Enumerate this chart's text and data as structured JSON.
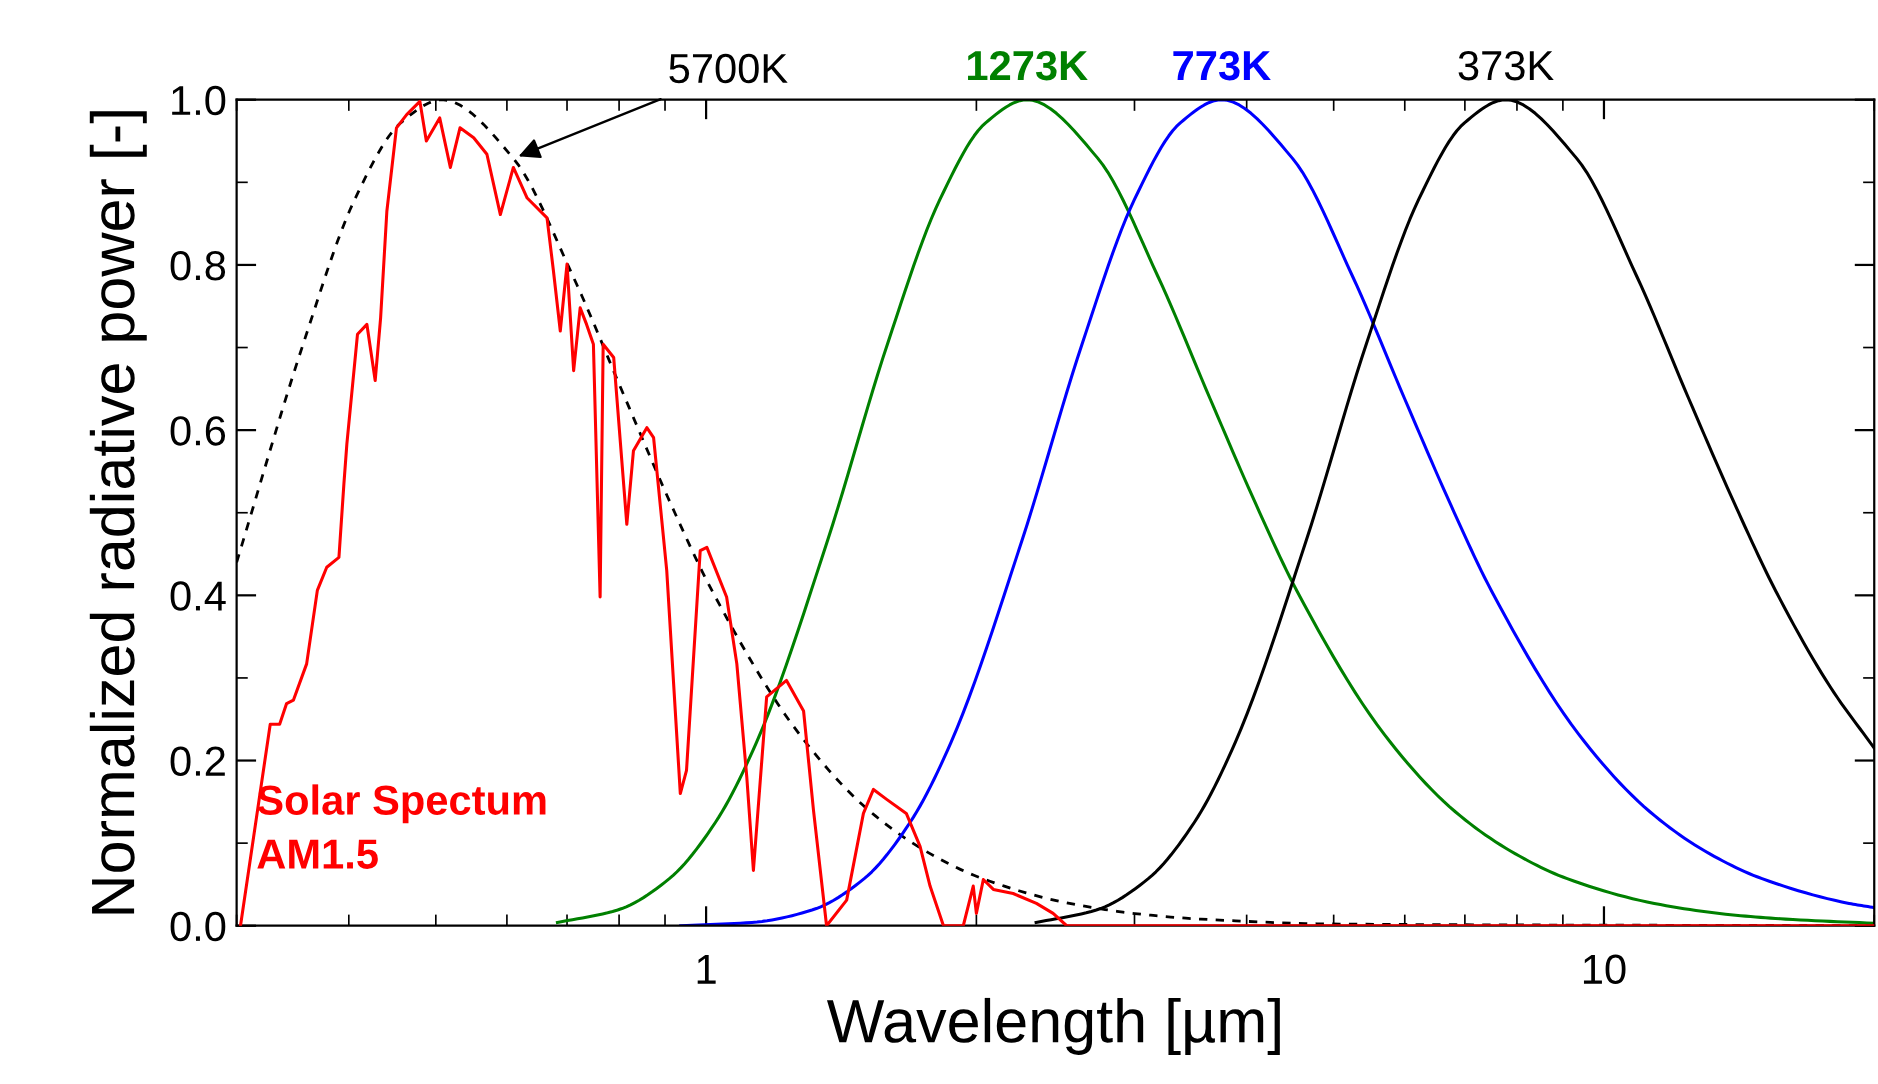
{
  "chart_data": {
    "type": "line",
    "xlabel": "Wavelength [µm]",
    "ylabel": "Normalized radiative power [-]",
    "log": "x",
    "xlim": [
      0.3,
      20
    ],
    "xticks": [
      1,
      10
    ],
    "ylim": [
      0,
      1
    ],
    "yticks": [
      {
        "value": 0,
        "label": "0.0"
      },
      {
        "value": 0.2,
        "label": "0.2"
      },
      {
        "value": 0.4,
        "label": "0.4"
      },
      {
        "value": 0.6,
        "label": "0.6"
      },
      {
        "value": 0.8,
        "label": "0.8"
      },
      {
        "value": 1,
        "label": "1.0"
      }
    ],
    "grid": false,
    "legend": false,
    "marker": "none",
    "series": [
      {
        "name": "Solar Spectum\nAM1.5",
        "color": "#ff0000",
        "line_style": "solid",
        "x": [
          0.303,
          0.327,
          0.335,
          0.341,
          0.347,
          0.359,
          0.369,
          0.378,
          0.39,
          0.395,
          0.398,
          0.409,
          0.419,
          0.428,
          0.434,
          0.441,
          0.452,
          0.464,
          0.48,
          0.488,
          0.505,
          0.519,
          0.532,
          0.551,
          0.57,
          0.59,
          0.61,
          0.632,
          0.665,
          0.676,
          0.688,
          0.7,
          0.712,
          0.724,
          0.736,
          0.749,
          0.762,
          0.768,
          0.789,
          0.816,
          0.83,
          0.859,
          0.874,
          0.904,
          0.936,
          0.951,
          0.985,
          1.002,
          1.054,
          1.082,
          1.11,
          1.129,
          1.168,
          1.229,
          1.284,
          1.317,
          1.362,
          1.434,
          1.497,
          1.536,
          1.589,
          1.671,
          1.731,
          1.776,
          1.838,
          1.934,
          1.984,
          2.0,
          2.036,
          2.089,
          2.198,
          2.333,
          2.435,
          2.521,
          20
        ],
        "values": [
          0,
          0.244,
          0.244,
          0.269,
          0.273,
          0.317,
          0.406,
          0.434,
          0.446,
          0.535,
          0.583,
          0.716,
          0.728,
          0.66,
          0.736,
          0.865,
          0.966,
          0.982,
          0.998,
          0.95,
          0.978,
          0.918,
          0.966,
          0.954,
          0.934,
          0.861,
          0.918,
          0.881,
          0.857,
          0.793,
          0.72,
          0.801,
          0.672,
          0.748,
          0.728,
          0.704,
          0.398,
          0.704,
          0.688,
          0.486,
          0.575,
          0.603,
          0.591,
          0.43,
          0.16,
          0.188,
          0.454,
          0.458,
          0.398,
          0.317,
          0.18,
          0.067,
          0.277,
          0.297,
          0.26,
          0.14,
          0,
          0.031,
          0.136,
          0.165,
          0.153,
          0.136,
          0.096,
          0.048,
          0,
          0,
          0.048,
          0.015,
          0.056,
          0.044,
          0.039,
          0.027,
          0.015,
          0,
          0
        ]
      },
      {
        "name": "5700K",
        "color": "#000000",
        "line_style": "dashed",
        "x": [
          0.3,
          0.356,
          0.406,
          0.457,
          0.508,
          0.61,
          0.711,
          0.813,
          0.914,
          1.016,
          1.27,
          1.524,
          1.778,
          2.032,
          2.54,
          3.048,
          3.556,
          5.08,
          20
        ],
        "values": [
          0.44,
          0.705,
          0.879,
          0.972,
          1.0,
          0.929,
          0.786,
          0.638,
          0.51,
          0.405,
          0.232,
          0.138,
          0.087,
          0.057,
          0.027,
          0.014,
          0.008,
          0.002,
          0
        ]
      },
      {
        "name": "1273K",
        "color": "#008000",
        "line_style": "solid",
        "x": [
          0.683,
          0.797,
          0.91,
          1.024,
          1.138,
          1.366,
          1.593,
          1.821,
          2.048,
          2.276,
          2.731,
          3.186,
          3.642,
          4.097,
          4.552,
          5.69,
          6.83,
          7.97,
          9.1,
          11.38,
          13.66,
          15.93,
          20
        ],
        "values": [
          0.004,
          0.019,
          0.057,
          0.125,
          0.222,
          0.467,
          0.705,
          0.879,
          0.972,
          1.0,
          0.929,
          0.786,
          0.638,
          0.51,
          0.405,
          0.232,
          0.138,
          0.087,
          0.057,
          0.027,
          0.014,
          0.008,
          0.003
        ]
      },
      {
        "name": "773K",
        "color": "#0000ff",
        "line_style": "solid",
        "x": [
          0.937,
          1.125,
          1.312,
          1.5,
          1.687,
          1.874,
          2.249,
          2.624,
          2.999,
          3.374,
          3.749,
          4.499,
          5.249,
          5.998,
          6.748,
          7.498,
          9.37,
          11.25,
          13.12,
          15.0,
          18.75,
          20
        ],
        "values": [
          0.0,
          0.004,
          0.019,
          0.057,
          0.125,
          0.222,
          0.467,
          0.705,
          0.879,
          0.972,
          1.0,
          0.929,
          0.786,
          0.638,
          0.51,
          0.405,
          0.232,
          0.138,
          0.087,
          0.057,
          0.027,
          0.022
        ]
      },
      {
        "name": "373K",
        "color": "#000000",
        "line_style": "solid",
        "x": [
          2.331,
          2.72,
          3.108,
          3.497,
          3.885,
          4.662,
          5.439,
          6.216,
          6.993,
          7.77,
          9.324,
          10.88,
          12.43,
          13.99,
          15.54,
          17.87,
          20
        ],
        "values": [
          0.004,
          0.019,
          0.057,
          0.125,
          0.222,
          0.467,
          0.705,
          0.879,
          0.972,
          1.0,
          0.929,
          0.786,
          0.638,
          0.51,
          0.405,
          0.289,
          0.215
        ]
      }
    ]
  }
}
